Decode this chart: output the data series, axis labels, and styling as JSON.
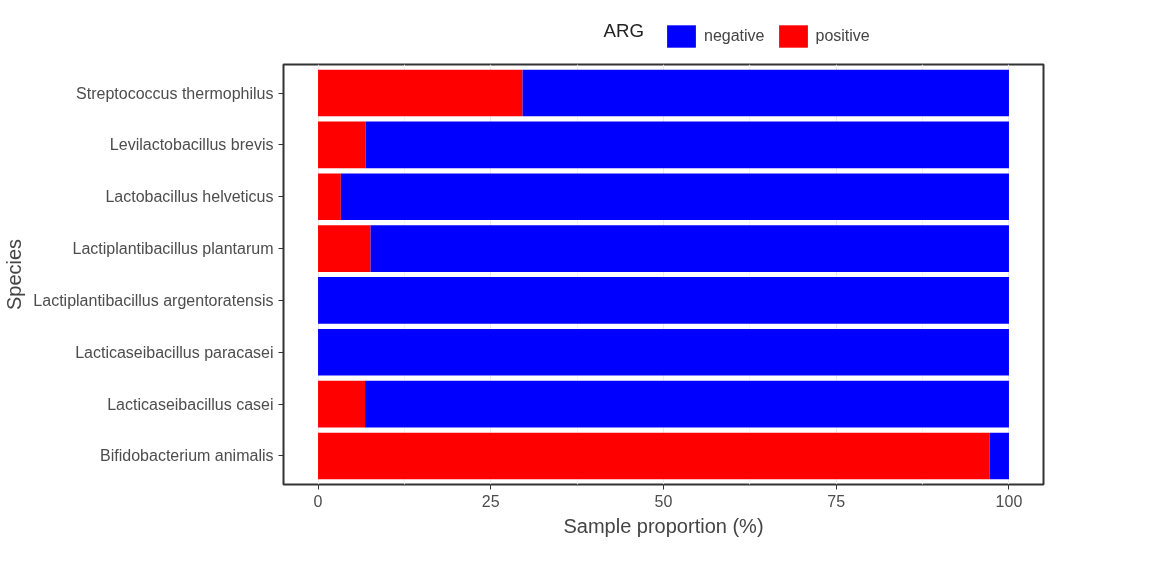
{
  "chart_data": {
    "type": "bar",
    "orientation": "horizontal",
    "stacked": true,
    "xlabel": "Sample proportion (%)",
    "ylabel": "Species",
    "legend_title": "ARG",
    "categories": [
      "Streptococcus thermophilus",
      "Levilactobacillus brevis",
      "Lactobacillus helveticus",
      "Lactiplantibacillus plantarum",
      "Lactiplantibacillus argentoratensis",
      "Lacticaseibacillus paracasei",
      "Lacticaseibacillus casei",
      "Bifidobacterium animalis"
    ],
    "series": [
      {
        "name": "positive",
        "color": "#ff0000",
        "values": [
          29.6,
          6.9,
          3.3,
          7.6,
          0,
          0,
          6.8,
          97.2
        ]
      },
      {
        "name": "negative",
        "color": "#0000ff",
        "values": [
          70.4,
          93.1,
          96.7,
          92.4,
          100,
          100,
          93.2,
          2.8
        ]
      }
    ],
    "xlim": [
      -5,
      105
    ],
    "xticks": [
      0,
      25,
      50,
      75,
      100
    ],
    "grid": "x",
    "legend": "top"
  }
}
